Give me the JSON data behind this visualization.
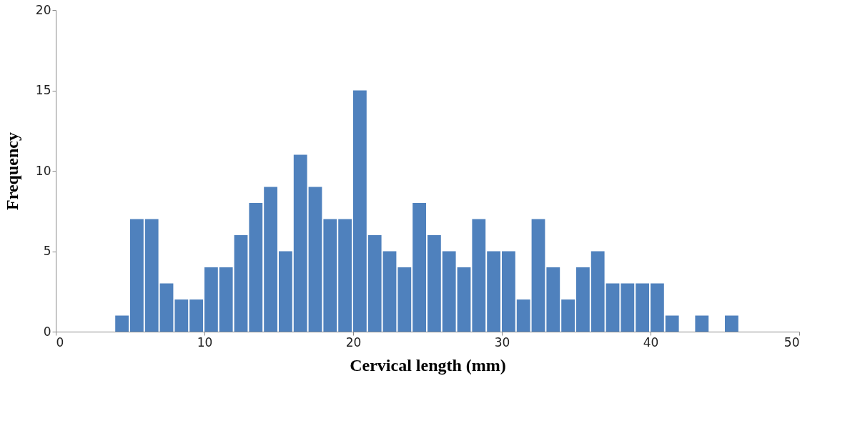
{
  "chart_data": {
    "type": "histogram",
    "xlabel": "Cervical length (mm)",
    "ylabel": "Frequency",
    "bins": [
      4,
      5,
      6,
      7,
      8,
      9,
      10,
      11,
      12,
      13,
      14,
      15,
      16,
      17,
      18,
      19,
      20,
      21,
      22,
      23,
      24,
      25,
      26,
      27,
      28,
      29,
      30,
      31,
      32,
      33,
      34,
      35,
      36,
      37,
      38,
      39,
      40,
      41,
      42,
      43,
      44,
      45,
      46
    ],
    "values": [
      1,
      7,
      7,
      3,
      2,
      2,
      4,
      4,
      6,
      8,
      9,
      5,
      11,
      9,
      7,
      7,
      15,
      6,
      5,
      4,
      8,
      6,
      5,
      4,
      7,
      5,
      5,
      2,
      7,
      4,
      2,
      4,
      5,
      3,
      3,
      3,
      3,
      1,
      0,
      1,
      0,
      1
    ],
    "color": "#4f81bd",
    "xlim": [
      0,
      50
    ],
    "xticks": [
      0,
      10,
      20,
      30,
      40,
      50
    ],
    "ylim": [
      0,
      20
    ],
    "yticks": [
      0,
      5,
      10,
      15,
      20
    ],
    "grid": false
  }
}
